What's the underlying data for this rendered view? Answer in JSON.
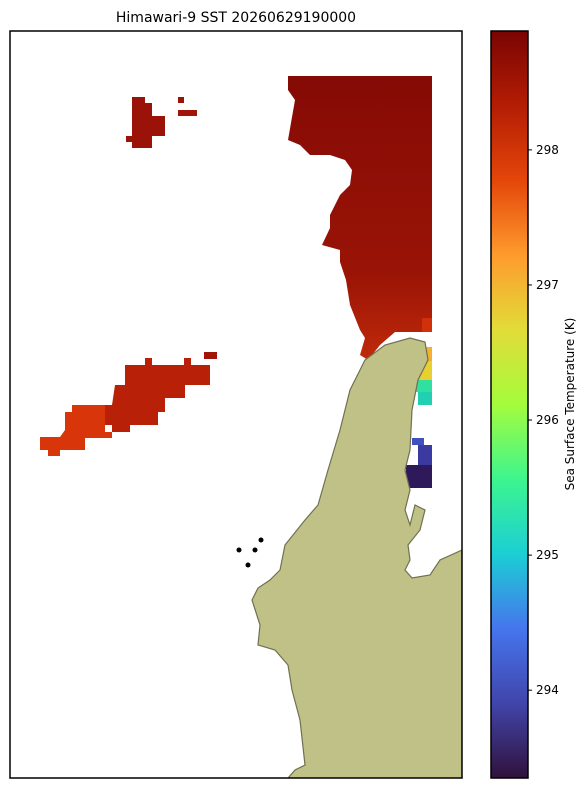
{
  "chart_data": {
    "type": "map",
    "title": "Himawari-9 SST 20260629190000",
    "colorbar_label": "Sea Surface Temperature (K)",
    "clim": [
      293.35,
      298.88
    ],
    "cticks": [
      294,
      295,
      296,
      297,
      298
    ]
  }
}
